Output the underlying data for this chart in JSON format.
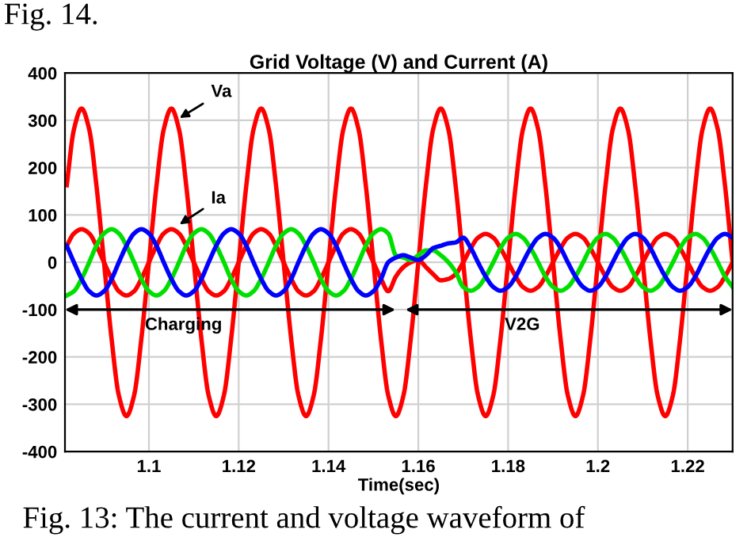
{
  "chart_data": {
    "type": "line",
    "title": "Grid Voltage (V) and Current (A)",
    "xlabel": "Time(sec)",
    "x": [
      1.0817,
      1.0833,
      1.085,
      1.0867,
      1.0883,
      1.09,
      1.0917,
      1.0933,
      1.095,
      1.0967,
      1.0983,
      1.1,
      1.1017,
      1.1033,
      1.105,
      1.1067,
      1.1083,
      1.11,
      1.1117,
      1.1133,
      1.115,
      1.1167,
      1.1183,
      1.12,
      1.1217,
      1.1233,
      1.125,
      1.1267,
      1.1283,
      1.13,
      1.1317,
      1.1333,
      1.135,
      1.1367,
      1.1383,
      1.14,
      1.1417,
      1.1433,
      1.145,
      1.1467,
      1.1483,
      1.15,
      1.1517,
      1.1533,
      1.155,
      1.1567,
      1.1583,
      1.16,
      1.1617,
      1.1633,
      1.165,
      1.1667,
      1.1683,
      1.17,
      1.1717,
      1.1733,
      1.175,
      1.1767,
      1.1783,
      1.18,
      1.1817,
      1.1833,
      1.185,
      1.1867,
      1.1883,
      1.19,
      1.1917,
      1.1933,
      1.195,
      1.1967,
      1.1983,
      1.2,
      1.2017,
      1.2033,
      1.205,
      1.2067,
      1.2083,
      1.21,
      1.2117,
      1.2133,
      1.215,
      1.2167,
      1.2183,
      1.22,
      1.2217,
      1.2233,
      1.225,
      1.2267,
      1.2283,
      1.23
    ],
    "series": [
      {
        "color": "#ff0000",
        "values": [
          163,
          281,
          325,
          281,
          163,
          0,
          -163,
          -281,
          -325,
          -281,
          -163,
          0,
          163,
          281,
          325,
          281,
          163,
          0,
          -163,
          -281,
          -325,
          -281,
          -163,
          0,
          163,
          281,
          325,
          281,
          163,
          0,
          -163,
          -281,
          -325,
          -281,
          -163,
          0,
          163,
          281,
          325,
          281,
          163,
          0,
          -163,
          -281,
          -325,
          -281,
          -163,
          0,
          163,
          281,
          325,
          281,
          163,
          0,
          -163,
          -281,
          -325,
          -281,
          -163,
          0,
          163,
          281,
          325,
          281,
          163,
          0,
          -163,
          -281,
          -325,
          -281,
          -163,
          0,
          163,
          281,
          325,
          281,
          163,
          0,
          -163,
          -281,
          -325,
          -281,
          -163,
          0,
          163,
          281,
          325,
          281,
          163,
          0
        ]
      },
      {
        "color": "#ff0000",
        "values": [
          35,
          61,
          70,
          61,
          35,
          0,
          -35,
          -61,
          -70,
          -61,
          -35,
          0,
          35,
          61,
          70,
          61,
          35,
          0,
          -35,
          -61,
          -70,
          -61,
          -35,
          0,
          35,
          61,
          70,
          61,
          35,
          0,
          -35,
          -61,
          -70,
          -61,
          -35,
          0,
          35,
          61,
          70,
          61,
          35,
          0,
          -35,
          -61,
          -30,
          -10,
          0,
          5,
          -10,
          -25,
          -38,
          -35,
          -25,
          0,
          30,
          52,
          60,
          52,
          30,
          0,
          -30,
          -52,
          -60,
          -52,
          -30,
          0,
          30,
          52,
          60,
          52,
          30,
          0,
          -30,
          -52,
          -60,
          -52,
          -30,
          0,
          30,
          52,
          60,
          52,
          30,
          0,
          -30,
          -52,
          -60,
          -52,
          -30,
          0
        ]
      },
      {
        "color": "#00e000",
        "values": [
          -70,
          -61,
          -35,
          0,
          35,
          61,
          70,
          61,
          35,
          0,
          -35,
          -61,
          -70,
          -61,
          -35,
          0,
          35,
          61,
          70,
          61,
          35,
          0,
          -35,
          -61,
          -70,
          -61,
          -35,
          0,
          35,
          61,
          70,
          61,
          35,
          0,
          -35,
          -61,
          -70,
          -61,
          -35,
          0,
          35,
          61,
          70,
          61,
          15,
          10,
          5,
          15,
          25,
          25,
          15,
          0,
          -20,
          -52,
          -60,
          -52,
          -30,
          0,
          30,
          52,
          60,
          52,
          30,
          0,
          -30,
          -52,
          -60,
          -52,
          -30,
          0,
          30,
          52,
          60,
          52,
          30,
          0,
          -30,
          -52,
          -60,
          -52,
          -30,
          0,
          30,
          52,
          60,
          52,
          30,
          0,
          -30,
          -52
        ]
      },
      {
        "color": "#0000ff",
        "values": [
          35,
          0,
          -35,
          -61,
          -70,
          -61,
          -35,
          0,
          35,
          61,
          70,
          61,
          35,
          0,
          -35,
          -61,
          -70,
          -61,
          -35,
          0,
          35,
          61,
          70,
          61,
          35,
          0,
          -35,
          -61,
          -70,
          -61,
          -35,
          0,
          35,
          61,
          70,
          61,
          35,
          0,
          -35,
          -61,
          -70,
          -61,
          -35,
          0,
          10,
          15,
          10,
          5,
          15,
          30,
          35,
          40,
          42,
          52,
          30,
          0,
          -30,
          -52,
          -60,
          -52,
          -30,
          0,
          30,
          52,
          60,
          52,
          30,
          0,
          -30,
          -52,
          -60,
          -52,
          -30,
          0,
          30,
          52,
          60,
          52,
          30,
          0,
          -30,
          -52,
          -60,
          -52,
          -30,
          0,
          30,
          52,
          60,
          52
        ]
      }
    ],
    "xlim": [
      1.0813,
      1.23
    ],
    "ylim": [
      -400,
      400
    ],
    "xticks": [
      1.1,
      1.12,
      1.14,
      1.16,
      1.18,
      1.2,
      1.22
    ],
    "yticks": [
      -400,
      -300,
      -200,
      -100,
      0,
      100,
      200,
      300,
      400
    ],
    "grid": true,
    "marker": "none",
    "line_style": "solid",
    "annotations": [
      "Charging",
      "V2G",
      {
        "text": "Va",
        "x": 1.106,
        "y": 300
      },
      {
        "text": "Ia",
        "x": 1.106,
        "y": 75
      },
      "Fig. 14.",
      "Fig. 13: The current and voltage waveform of"
    ]
  }
}
